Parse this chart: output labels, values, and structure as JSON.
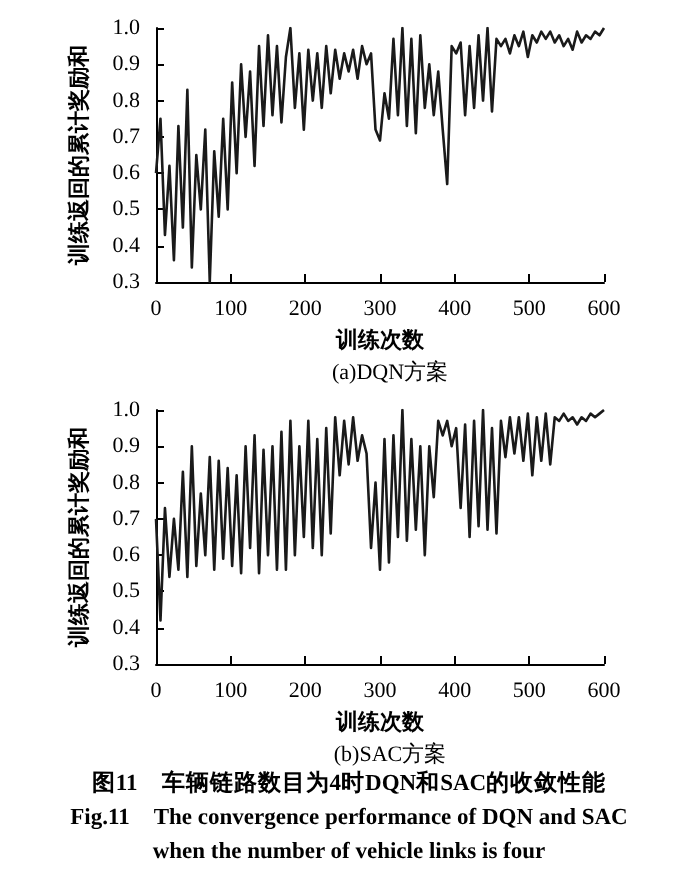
{
  "chart_data": [
    {
      "type": "line",
      "title": "(a)DQN方案",
      "xlabel": "训练次数",
      "ylabel": "训练返回的累计奖励和",
      "xlim": [
        0,
        600
      ],
      "ylim": [
        0.3,
        1.0
      ],
      "xticks": [
        0,
        100,
        200,
        300,
        400,
        500,
        600
      ],
      "yticks": [
        0.3,
        0.4,
        0.5,
        0.6,
        0.7,
        0.8,
        0.9,
        {
          "value": 1,
          "label": "1.0"
        }
      ],
      "grid": false,
      "x": [
        0,
        6,
        12,
        18,
        24,
        30,
        36,
        42,
        48,
        54,
        60,
        66,
        72,
        78,
        84,
        90,
        96,
        102,
        108,
        114,
        120,
        126,
        132,
        138,
        144,
        150,
        156,
        162,
        168,
        174,
        180,
        186,
        192,
        198,
        204,
        210,
        216,
        222,
        228,
        234,
        240,
        246,
        252,
        258,
        264,
        270,
        276,
        282,
        288,
        294,
        300,
        306,
        312,
        318,
        324,
        330,
        336,
        342,
        348,
        354,
        360,
        366,
        372,
        378,
        384,
        390,
        396,
        402,
        408,
        414,
        420,
        426,
        432,
        438,
        444,
        450,
        456,
        462,
        468,
        474,
        480,
        486,
        492,
        498,
        504,
        510,
        516,
        522,
        528,
        534,
        540,
        546,
        552,
        558,
        564,
        570,
        576,
        582,
        588,
        594,
        600
      ],
      "series": [
        {
          "color": "#1a1a1a",
          "values": [
            0.6,
            0.75,
            0.43,
            0.62,
            0.36,
            0.73,
            0.45,
            0.83,
            0.34,
            0.65,
            0.5,
            0.72,
            0.3,
            0.66,
            0.48,
            0.75,
            0.5,
            0.85,
            0.6,
            0.9,
            0.7,
            0.88,
            0.62,
            0.95,
            0.73,
            0.98,
            0.76,
            0.95,
            0.74,
            0.92,
            1.0,
            0.78,
            0.93,
            0.72,
            0.94,
            0.8,
            0.93,
            0.78,
            0.95,
            0.82,
            0.94,
            0.86,
            0.93,
            0.88,
            0.94,
            0.86,
            0.95,
            0.9,
            0.93,
            0.72,
            0.69,
            0.82,
            0.75,
            0.97,
            0.76,
            1.0,
            0.73,
            0.97,
            0.71,
            0.98,
            0.78,
            0.9,
            0.76,
            0.88,
            0.72,
            0.57,
            0.95,
            0.93,
            0.96,
            0.76,
            0.95,
            0.78,
            0.98,
            0.8,
            1.0,
            0.77,
            0.97,
            0.95,
            0.97,
            0.93,
            0.98,
            0.95,
            0.99,
            0.92,
            0.98,
            0.96,
            0.99,
            0.97,
            0.99,
            0.96,
            0.98,
            0.95,
            0.97,
            0.94,
            0.99,
            0.96,
            0.98,
            0.97,
            0.99,
            0.98,
            1.0
          ]
        }
      ]
    },
    {
      "type": "line",
      "title": "(b)SAC方案",
      "xlabel": "训练次数",
      "ylabel": "训练返回的累计奖励和",
      "xlim": [
        0,
        600
      ],
      "ylim": [
        0.3,
        1.0
      ],
      "xticks": [
        0,
        100,
        200,
        300,
        400,
        500,
        600
      ],
      "yticks": [
        0.3,
        0.4,
        0.5,
        0.6,
        0.7,
        0.8,
        0.9,
        {
          "value": 1,
          "label": "1.0"
        }
      ],
      "grid": false,
      "annotations": [
        "图11　车辆链路数目为4时DQN和SAC的收敛性能",
        "Fig.11　The convergence performance of DQN and SAC when the number of vehicle links is four"
      ],
      "x": [
        0,
        6,
        12,
        18,
        24,
        30,
        36,
        42,
        48,
        54,
        60,
        66,
        72,
        78,
        84,
        90,
        96,
        102,
        108,
        114,
        120,
        126,
        132,
        138,
        144,
        150,
        156,
        162,
        168,
        174,
        180,
        186,
        192,
        198,
        204,
        210,
        216,
        222,
        228,
        234,
        240,
        246,
        252,
        258,
        264,
        270,
        276,
        282,
        288,
        294,
        300,
        306,
        312,
        318,
        324,
        330,
        336,
        342,
        348,
        354,
        360,
        366,
        372,
        378,
        384,
        390,
        396,
        402,
        408,
        414,
        420,
        426,
        432,
        438,
        444,
        450,
        456,
        462,
        468,
        474,
        480,
        486,
        492,
        498,
        504,
        510,
        516,
        522,
        528,
        534,
        540,
        546,
        552,
        558,
        564,
        570,
        576,
        582,
        588,
        594,
        600
      ],
      "series": [
        {
          "color": "#1a1a1a",
          "values": [
            0.7,
            0.42,
            0.73,
            0.54,
            0.7,
            0.56,
            0.83,
            0.54,
            0.9,
            0.57,
            0.77,
            0.6,
            0.87,
            0.56,
            0.86,
            0.59,
            0.84,
            0.57,
            0.82,
            0.55,
            0.9,
            0.62,
            0.93,
            0.55,
            0.89,
            0.6,
            0.9,
            0.56,
            0.94,
            0.56,
            0.97,
            0.6,
            0.9,
            0.65,
            0.97,
            0.62,
            0.92,
            0.6,
            0.95,
            0.66,
            0.98,
            0.82,
            0.97,
            0.85,
            0.98,
            0.86,
            0.93,
            0.88,
            0.62,
            0.8,
            0.56,
            0.92,
            0.58,
            0.93,
            0.65,
            1.0,
            0.64,
            0.92,
            0.67,
            0.9,
            0.6,
            0.9,
            0.76,
            0.97,
            0.93,
            0.97,
            0.9,
            0.95,
            0.73,
            0.96,
            0.65,
            0.97,
            0.68,
            1.0,
            0.67,
            0.95,
            0.66,
            0.97,
            0.87,
            0.98,
            0.88,
            0.98,
            0.86,
            0.99,
            0.82,
            0.98,
            0.86,
            0.99,
            0.85,
            0.98,
            0.97,
            0.99,
            0.97,
            0.98,
            0.96,
            0.98,
            0.97,
            0.99,
            0.98,
            0.99,
            1.0
          ]
        }
      ]
    }
  ]
}
